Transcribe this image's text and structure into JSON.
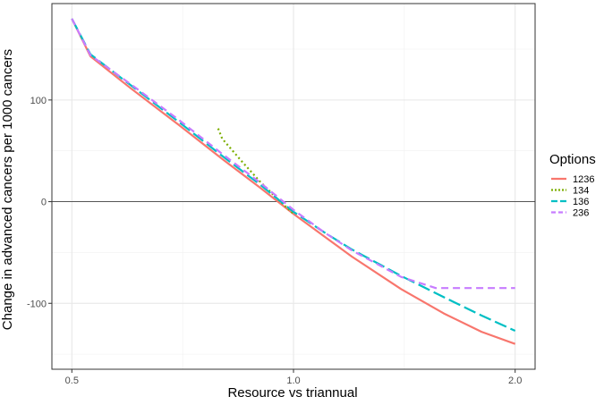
{
  "chart_data": {
    "type": "line",
    "xlabel": "Resource vs triannual",
    "ylabel": "Change in advanced cancers per 1000 cancers",
    "x_scale": "log2",
    "xlim": [
      0.5,
      2.0
    ],
    "ylim": [
      -150,
      180
    ],
    "x_ticks": [
      0.5,
      1.0,
      2.0
    ],
    "x_tick_labels": [
      "0.5",
      "1.0",
      "2.0"
    ],
    "y_ticks": [
      -100,
      0,
      100
    ],
    "y_tick_labels": [
      "-100",
      "0",
      "100"
    ],
    "reference_line_y": 0,
    "grid": true,
    "legend": {
      "title": "Options",
      "position": "right",
      "entries": [
        "1236",
        "134",
        "136",
        "236"
      ]
    },
    "series": [
      {
        "name": "1236",
        "color": "#F8766D",
        "dash": "solid",
        "points": [
          [
            0.5,
            180
          ],
          [
            0.53,
            143
          ],
          [
            0.6,
            112
          ],
          [
            0.7,
            75
          ],
          [
            0.8,
            42
          ],
          [
            0.9,
            14
          ],
          [
            1.0,
            -12
          ],
          [
            1.1,
            -34
          ],
          [
            1.2,
            -54
          ],
          [
            1.4,
            -86
          ],
          [
            1.6,
            -110
          ],
          [
            1.8,
            -128
          ],
          [
            2.0,
            -140
          ]
        ]
      },
      {
        "name": "134",
        "color": "#7CAE00",
        "dash": "dotted",
        "points": [
          [
            0.79,
            72
          ],
          [
            0.8,
            62
          ],
          [
            0.85,
            40
          ],
          [
            0.9,
            20
          ],
          [
            0.95,
            3
          ],
          [
            1.0,
            -12
          ]
        ]
      },
      {
        "name": "136",
        "color": "#00BFC4",
        "dash": "longdash",
        "points": [
          [
            0.5,
            180
          ],
          [
            0.53,
            145
          ],
          [
            0.6,
            115
          ],
          [
            0.7,
            78
          ],
          [
            0.8,
            45
          ],
          [
            0.9,
            17
          ],
          [
            1.0,
            -10
          ],
          [
            1.1,
            -30
          ],
          [
            1.2,
            -47
          ],
          [
            1.4,
            -73
          ],
          [
            1.6,
            -94
          ],
          [
            1.8,
            -112
          ],
          [
            2.0,
            -127
          ]
        ]
      },
      {
        "name": "236",
        "color": "#C77CFF",
        "dash": "dashed",
        "points": [
          [
            0.5,
            180
          ],
          [
            0.53,
            144
          ],
          [
            0.6,
            116
          ],
          [
            0.7,
            80
          ],
          [
            0.8,
            47
          ],
          [
            0.9,
            19
          ],
          [
            1.0,
            -8
          ],
          [
            1.1,
            -30
          ],
          [
            1.2,
            -48
          ],
          [
            1.4,
            -74
          ],
          [
            1.56,
            -85
          ],
          [
            2.0,
            -85
          ]
        ]
      }
    ]
  }
}
